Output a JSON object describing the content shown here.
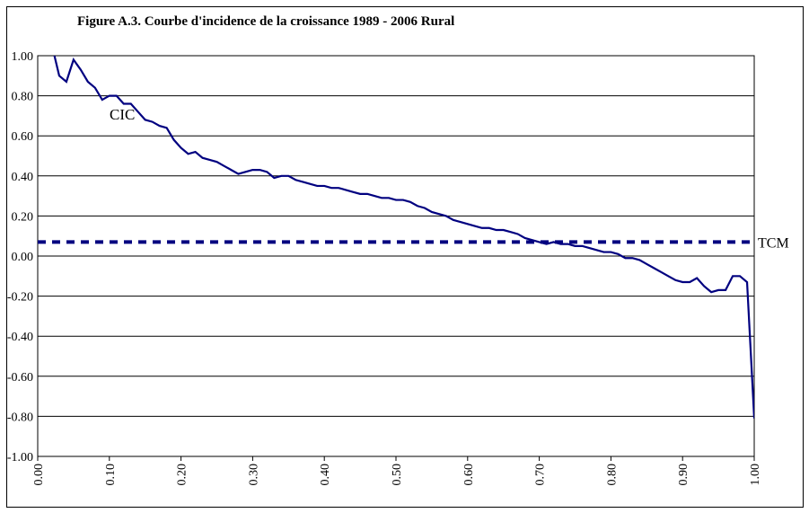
{
  "chart_data": {
    "type": "line",
    "title": "Figure A.3.  Courbe d'incidence de la croissance 1989 - 2006 Rural",
    "series": [
      {
        "name": "CIC",
        "color": "#000080",
        "style": "solid",
        "x": [
          0.02,
          0.03,
          0.04,
          0.05,
          0.06,
          0.07,
          0.08,
          0.09,
          0.1,
          0.11,
          0.12,
          0.13,
          0.14,
          0.15,
          0.16,
          0.17,
          0.18,
          0.19,
          0.2,
          0.21,
          0.22,
          0.23,
          0.24,
          0.25,
          0.26,
          0.27,
          0.28,
          0.29,
          0.3,
          0.31,
          0.32,
          0.33,
          0.34,
          0.35,
          0.36,
          0.37,
          0.38,
          0.39,
          0.4,
          0.41,
          0.42,
          0.43,
          0.44,
          0.45,
          0.46,
          0.47,
          0.48,
          0.49,
          0.5,
          0.51,
          0.52,
          0.53,
          0.54,
          0.55,
          0.56,
          0.57,
          0.58,
          0.59,
          0.6,
          0.61,
          0.62,
          0.63,
          0.64,
          0.65,
          0.66,
          0.67,
          0.68,
          0.69,
          0.7,
          0.71,
          0.72,
          0.73,
          0.74,
          0.75,
          0.76,
          0.77,
          0.78,
          0.79,
          0.8,
          0.81,
          0.82,
          0.83,
          0.84,
          0.85,
          0.86,
          0.87,
          0.88,
          0.89,
          0.9,
          0.91,
          0.92,
          0.93,
          0.94,
          0.95,
          0.96,
          0.97,
          0.98,
          0.99,
          1.0
        ],
        "values": [
          1.05,
          0.9,
          0.87,
          0.98,
          0.93,
          0.87,
          0.84,
          0.78,
          0.8,
          0.8,
          0.76,
          0.76,
          0.72,
          0.68,
          0.67,
          0.65,
          0.64,
          0.58,
          0.54,
          0.51,
          0.52,
          0.49,
          0.48,
          0.47,
          0.45,
          0.43,
          0.41,
          0.42,
          0.43,
          0.43,
          0.42,
          0.39,
          0.4,
          0.4,
          0.38,
          0.37,
          0.36,
          0.35,
          0.35,
          0.34,
          0.34,
          0.33,
          0.32,
          0.31,
          0.31,
          0.3,
          0.29,
          0.29,
          0.28,
          0.28,
          0.27,
          0.25,
          0.24,
          0.22,
          0.21,
          0.2,
          0.18,
          0.17,
          0.16,
          0.15,
          0.14,
          0.14,
          0.13,
          0.13,
          0.12,
          0.11,
          0.09,
          0.08,
          0.07,
          0.06,
          0.07,
          0.06,
          0.06,
          0.05,
          0.05,
          0.04,
          0.03,
          0.02,
          0.02,
          0.01,
          -0.01,
          -0.01,
          -0.02,
          -0.04,
          -0.06,
          -0.08,
          -0.1,
          -0.12,
          -0.13,
          -0.13,
          -0.11,
          -0.15,
          -0.18,
          -0.17,
          -0.17,
          -0.1,
          -0.1,
          -0.13,
          -0.81
        ]
      },
      {
        "name": "TCM",
        "color": "#000080",
        "style": "dashed",
        "x": [
          0,
          1
        ],
        "values": [
          0.07,
          0.07
        ]
      }
    ],
    "xlim": [
      0,
      1
    ],
    "xticks": [
      {
        "value": 0,
        "label": "0.00"
      },
      {
        "value": 0.1,
        "label": "0.10"
      },
      {
        "value": 0.2,
        "label": "0.20"
      },
      {
        "value": 0.3,
        "label": "0.30"
      },
      {
        "value": 0.4,
        "label": "0.40"
      },
      {
        "value": 0.5,
        "label": "0.50"
      },
      {
        "value": 0.6,
        "label": "0.60"
      },
      {
        "value": 0.7,
        "label": "0.70"
      },
      {
        "value": 0.8,
        "label": "0.80"
      },
      {
        "value": 0.9,
        "label": "0.90"
      },
      {
        "value": 1,
        "label": "1.00"
      }
    ],
    "ylim": [
      -1,
      1
    ],
    "yticks": [
      {
        "value": -1,
        "label": "-1.00"
      },
      {
        "value": -0.8,
        "label": "-0.80"
      },
      {
        "value": -0.6,
        "label": "-0.60"
      },
      {
        "value": -0.4,
        "label": "-0.40"
      },
      {
        "value": -0.2,
        "label": "-0.20"
      },
      {
        "value": 0,
        "label": "0.00"
      },
      {
        "value": 0.2,
        "label": "0.20"
      },
      {
        "value": 0.4,
        "label": "0.40"
      },
      {
        "value": 0.6,
        "label": "0.60"
      },
      {
        "value": 0.8,
        "label": "0.80"
      },
      {
        "value": 1,
        "label": "1.00"
      }
    ],
    "grid": true
  }
}
